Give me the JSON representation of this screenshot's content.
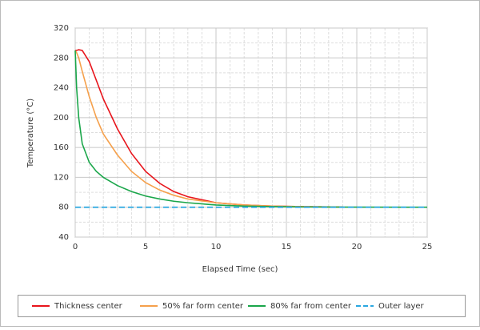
{
  "chart_data": {
    "type": "line",
    "xlabel": "Elapsed Time (sec)",
    "ylabel": "Temperature (°C)",
    "x": [
      0,
      0.1,
      0.25,
      0.5,
      1,
      1.5,
      2,
      3,
      4,
      5,
      6,
      7,
      8,
      10,
      12,
      14,
      16,
      19,
      25
    ],
    "series": [
      {
        "name": "Thickness center",
        "color": "#e8141b",
        "dash": false,
        "values": [
          290,
          290,
          291,
          290,
          275,
          250,
          225,
          185,
          152,
          128,
          112,
          101,
          94,
          86,
          83,
          81.5,
          80.8,
          80.3,
          null
        ]
      },
      {
        "name": "50% far form center",
        "color": "#f5a04b",
        "dash": false,
        "values": [
          290,
          287,
          280,
          262,
          228,
          200,
          178,
          150,
          128,
          113,
          103,
          96,
          91,
          86,
          83,
          81.5,
          80.8,
          80.3,
          null
        ]
      },
      {
        "name": "80% far from center",
        "color": "#1aa64a",
        "dash": false,
        "values": [
          290,
          240,
          200,
          165,
          140,
          128,
          120,
          109,
          101,
          95,
          91,
          88,
          86,
          83,
          81.5,
          80.8,
          80.4,
          80.2,
          80
        ]
      },
      {
        "name": "Outer layer",
        "color": "#2aa7e0",
        "dash": true,
        "values": [
          80,
          80,
          80,
          80,
          80,
          80,
          80,
          80,
          80,
          80,
          80,
          80,
          80,
          80,
          80,
          80,
          80,
          80,
          80
        ]
      }
    ],
    "xlim": [
      0,
      25
    ],
    "xticks": [
      0,
      5,
      10,
      15,
      20,
      25
    ],
    "ylim": [
      40,
      320
    ],
    "yticks": [
      40,
      80,
      120,
      160,
      200,
      240,
      280,
      320
    ],
    "grid": true,
    "legend": "bottom"
  }
}
